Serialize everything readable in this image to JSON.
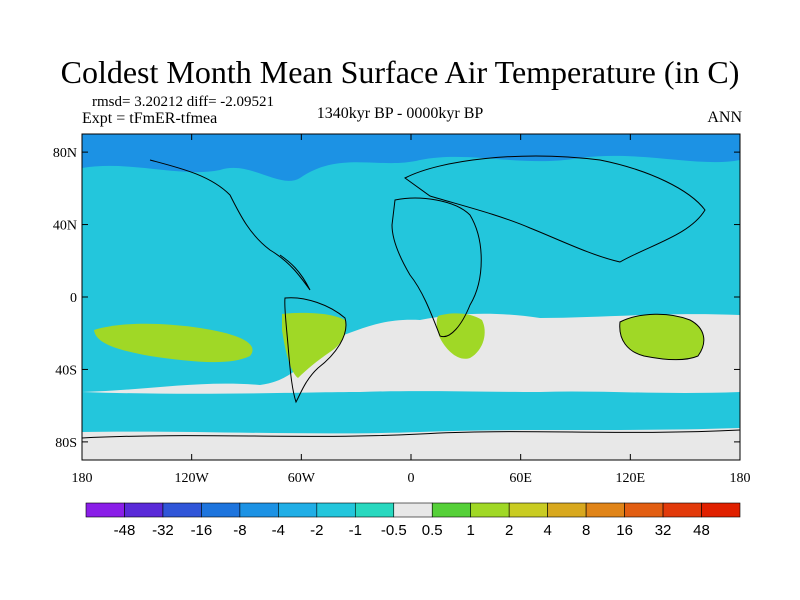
{
  "title": "Coldest Month Mean Surface Air Temperature (in C)",
  "stats": "rmsd= 3.20212 diff= -2.09521",
  "experiment": "Expt = tFmER-tfmea",
  "period": "1340kyr BP - 0000kyr BP",
  "season": "ANN",
  "lat_labels": [
    "80N",
    "40N",
    "0",
    "40S",
    "80S"
  ],
  "lat_values": [
    80,
    40,
    0,
    -40,
    -80
  ],
  "lon_labels": [
    "180",
    "120W",
    "60W",
    "0",
    "60E",
    "120E",
    "180"
  ],
  "lon_values": [
    -180,
    -120,
    -60,
    0,
    60,
    120,
    180
  ],
  "colorbar": {
    "levels": [
      "-48",
      "-32",
      "-16",
      "-8",
      "-4",
      "-2",
      "-1",
      "-0.5",
      "0.5",
      "1",
      "2",
      "4",
      "8",
      "16",
      "32",
      "48"
    ],
    "colors": [
      "#8a1ee8",
      "#5a2ad8",
      "#2f55d8",
      "#1d74dd",
      "#1c92e4",
      "#20aee6",
      "#23c6dc",
      "#28d8bf",
      "#e8e8e8",
      "#55d038",
      "#a0d826",
      "#c9cc22",
      "#d8a81e",
      "#e08418",
      "#e25e12",
      "#e23a0a",
      "#e02000"
    ]
  },
  "map": {
    "ocean_color": "#23c6dc",
    "arctic_color": "#1c92e4",
    "neutral_color": "#e8e8e8",
    "warm_color": "#a0d826",
    "coast_color": "#000000"
  }
}
